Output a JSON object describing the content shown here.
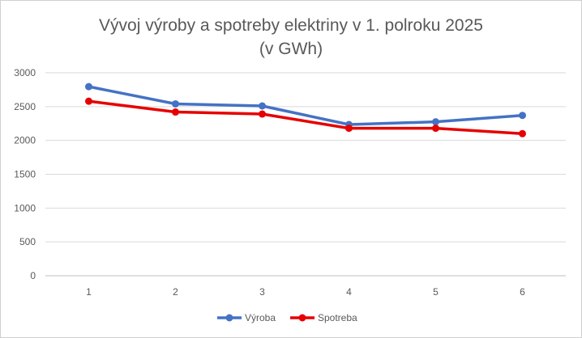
{
  "chart_data": {
    "type": "line",
    "title_lines": [
      "Vývoj výroby a spotreby elektriny v 1. polroku 2025",
      "(v GWh)"
    ],
    "xlabel": "",
    "ylabel": "",
    "categories": [
      "1",
      "2",
      "3",
      "4",
      "5",
      "6"
    ],
    "ylim": [
      0,
      3000
    ],
    "yticks": [
      "0",
      "500",
      "1000",
      "1500",
      "2000",
      "2500",
      "3000"
    ],
    "grid": true,
    "legend_position": "bottom",
    "series": [
      {
        "name": "Výroba",
        "color": "#4472C4",
        "values": [
          2795,
          2540,
          2510,
          2235,
          2275,
          2370
        ]
      },
      {
        "name": "Spotreba",
        "color": "#E60000",
        "values": [
          2580,
          2420,
          2390,
          2180,
          2180,
          2100
        ]
      }
    ]
  }
}
